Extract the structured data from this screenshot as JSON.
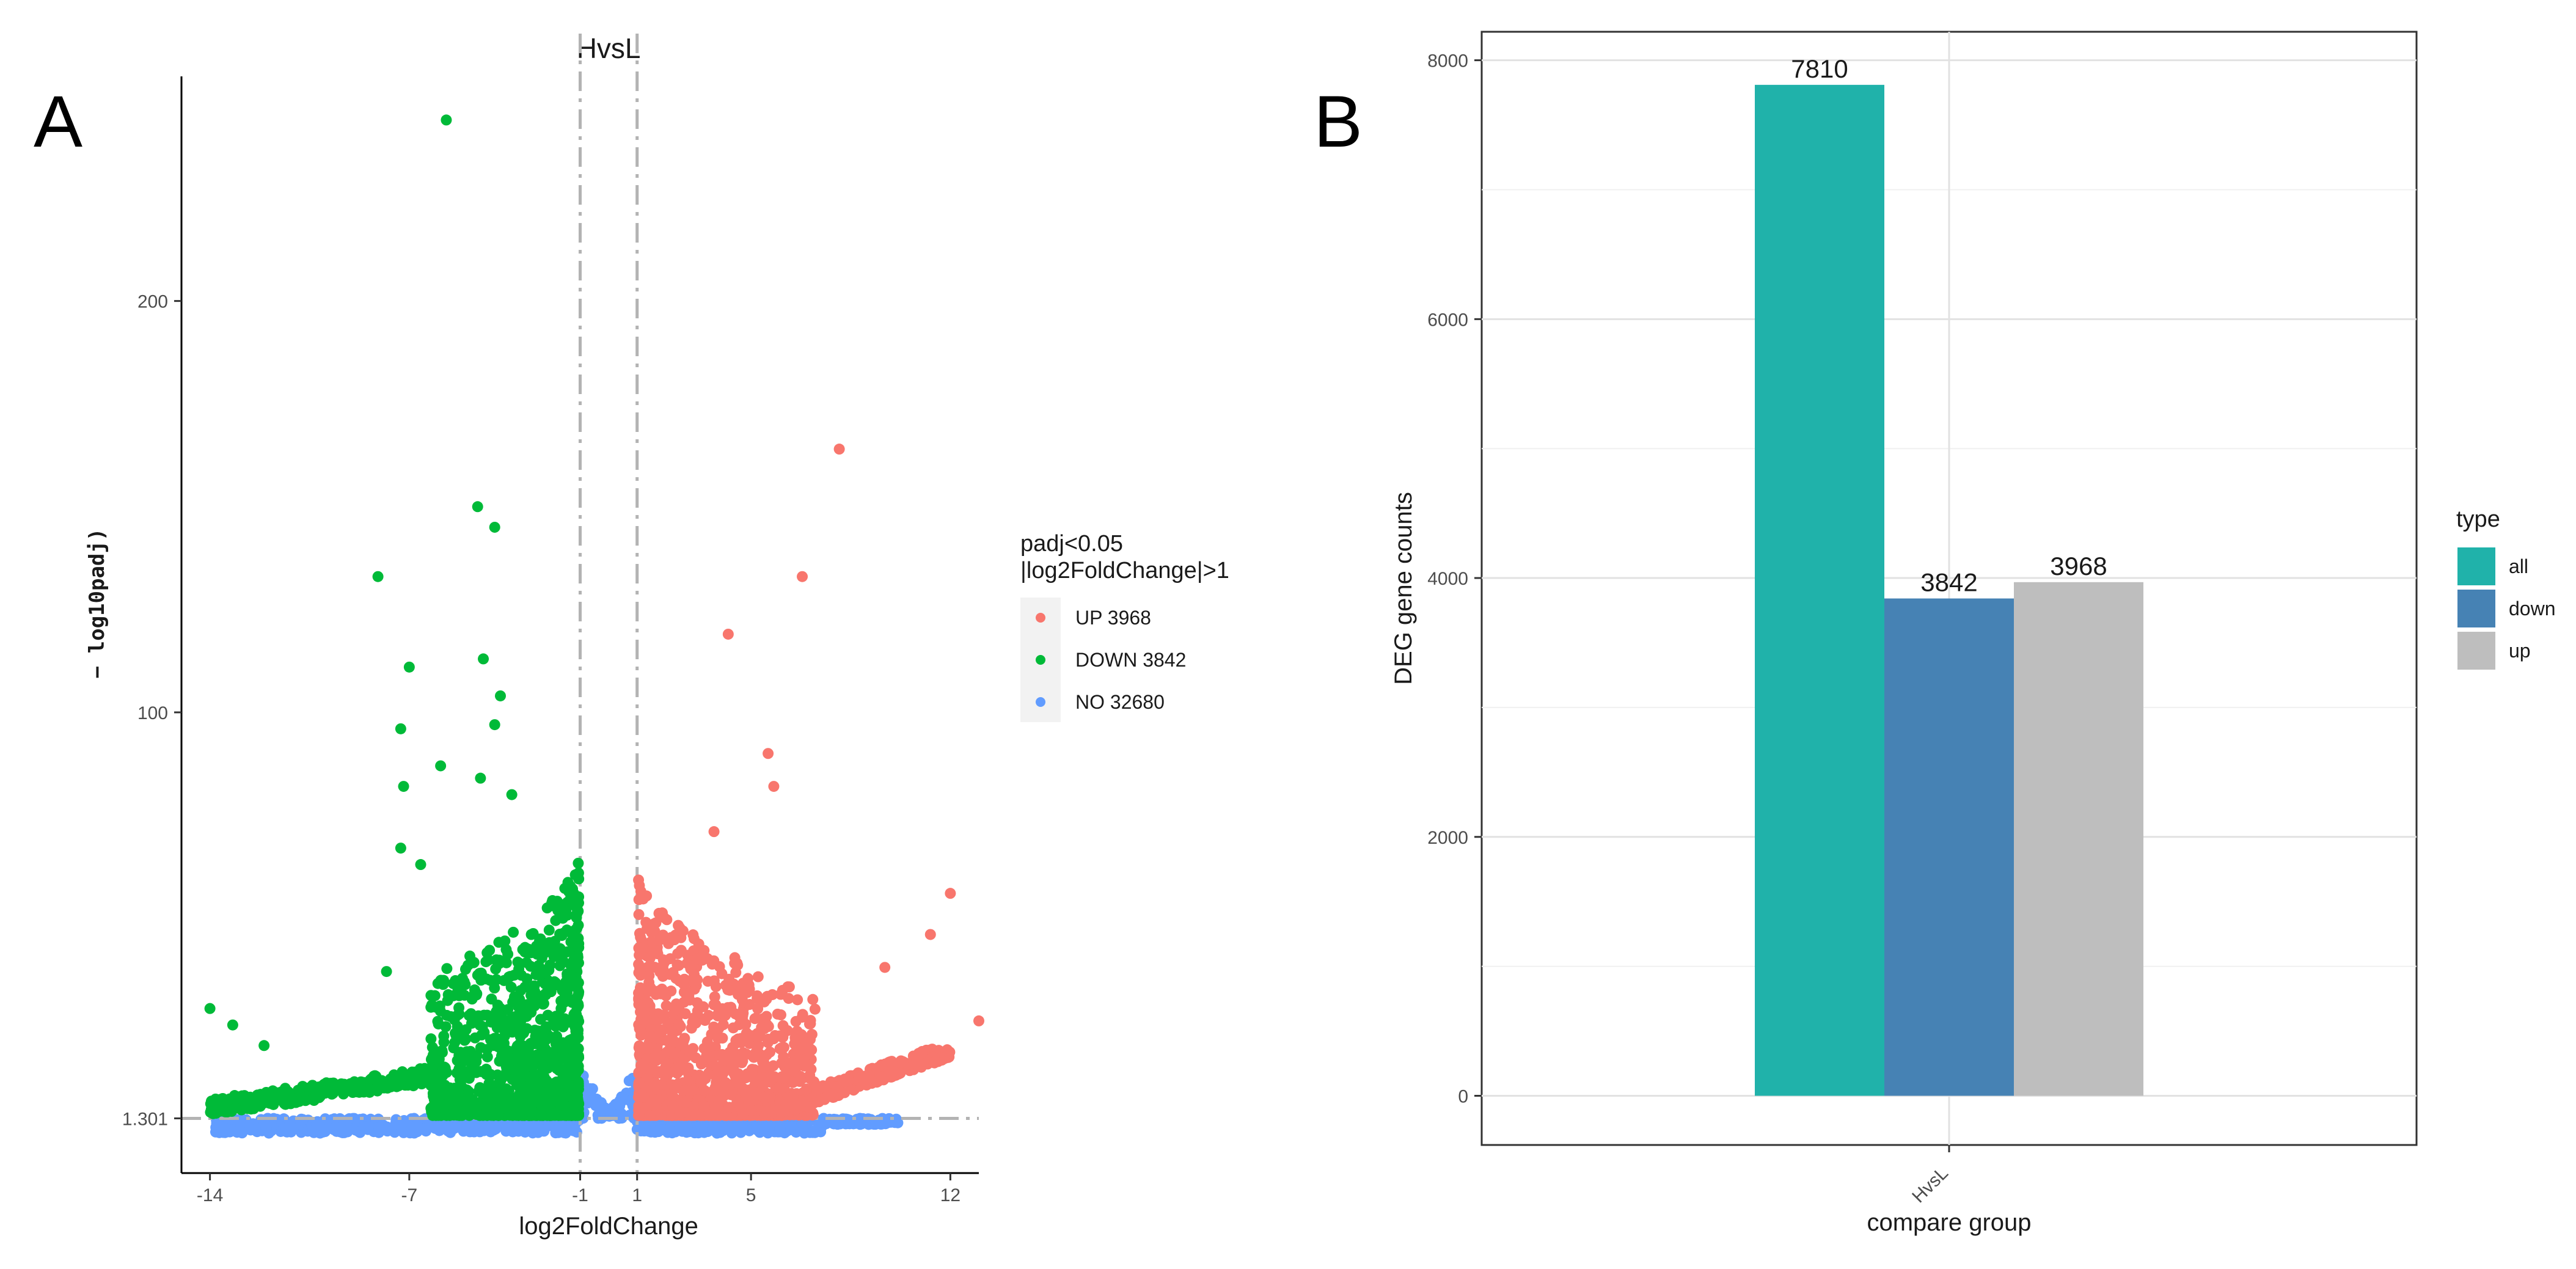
{
  "panels": {
    "a_letter": "A",
    "b_letter": "B"
  },
  "chart_data": [
    {
      "type": "scatter",
      "panel": "A",
      "title": "HvsL",
      "xlabel": "log2FoldChange",
      "ylabel": "− log10padj)",
      "xlim": [
        -15,
        13
      ],
      "ylim": [
        -12,
        265
      ],
      "x_ticks": [
        -14,
        -7,
        -1,
        1,
        5,
        12
      ],
      "y_ticks": [
        1.301,
        100,
        200
      ],
      "y_tick_labels": [
        "1.301",
        "100",
        "200"
      ],
      "thresholds": {
        "log2fc": [
          -1,
          1
        ],
        "neglog10padj": 1.301
      },
      "legend": {
        "title_line1": "padj<0.05",
        "title_line2": "|log2FoldChange|>1",
        "entries": [
          {
            "label": "UP 3968",
            "color": "#F8766D"
          },
          {
            "label": "DOWN 3842",
            "color": "#00BA38"
          },
          {
            "label": "NO 32680",
            "color": "#619CFF"
          }
        ]
      },
      "highlighted_points": {
        "down": [
          [
            -5.7,
            244
          ],
          [
            -4.6,
            150
          ],
          [
            -4.0,
            145
          ],
          [
            -8.1,
            133
          ],
          [
            -7.0,
            111
          ],
          [
            -4.4,
            113
          ],
          [
            -7.3,
            96
          ],
          [
            -3.8,
            104
          ],
          [
            -4.0,
            97
          ],
          [
            -5.9,
            87
          ],
          [
            -4.5,
            84
          ],
          [
            -7.2,
            82
          ],
          [
            -3.4,
            80
          ],
          [
            -7.3,
            67
          ],
          [
            -6.6,
            63
          ],
          [
            -7.8,
            37
          ],
          [
            -12.1,
            19
          ],
          [
            -13.2,
            24
          ],
          [
            -14.0,
            28
          ]
        ],
        "up": [
          [
            8.1,
            164
          ],
          [
            6.8,
            133
          ],
          [
            4.2,
            119
          ],
          [
            5.6,
            90
          ],
          [
            5.8,
            82
          ],
          [
            3.7,
            71
          ],
          [
            12.0,
            56
          ],
          [
            9.7,
            38
          ],
          [
            11.3,
            46
          ],
          [
            13.0,
            25
          ]
        ]
      },
      "series_counts": {
        "UP": 3968,
        "DOWN": 3842,
        "NO": 32680
      }
    },
    {
      "type": "bar",
      "panel": "B",
      "categories": [
        "HvsL"
      ],
      "series": [
        {
          "name": "all",
          "values": [
            7810
          ],
          "color": "#20B2AA"
        },
        {
          "name": "down",
          "values": [
            3842
          ],
          "color": "#4682B4"
        },
        {
          "name": "up",
          "values": [
            3968
          ],
          "color": "#BEBEBE"
        }
      ],
      "data_labels": [
        "7810",
        "3842",
        "3968"
      ],
      "xlabel": "compare group",
      "ylabel": "DEG gene counts",
      "ylim": [
        -380,
        8220
      ],
      "y_ticks": [
        0,
        2000,
        4000,
        6000,
        8000
      ],
      "legend_title": "type"
    }
  ]
}
